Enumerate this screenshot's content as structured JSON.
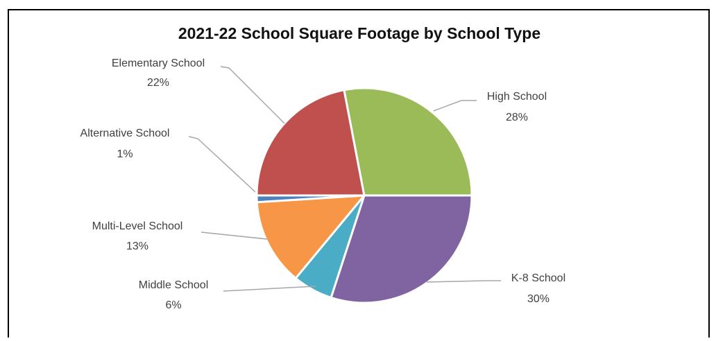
{
  "chart_data": {
    "type": "pie",
    "title": "2021-22 School Square Footage by School Type",
    "categories": [
      "Elementary School",
      "High School",
      "K-8 School",
      "Middle School",
      "Multi-Level School",
      "Alternative School"
    ],
    "values": [
      22,
      28,
      30,
      6,
      13,
      1
    ],
    "value_labels": [
      "22%",
      "28%",
      "30%",
      "6%",
      "13%",
      "1%"
    ],
    "colors": [
      "#c0504d",
      "#9bbb59",
      "#8064a2",
      "#4bacc6",
      "#f79646",
      "#4f81bd"
    ]
  }
}
